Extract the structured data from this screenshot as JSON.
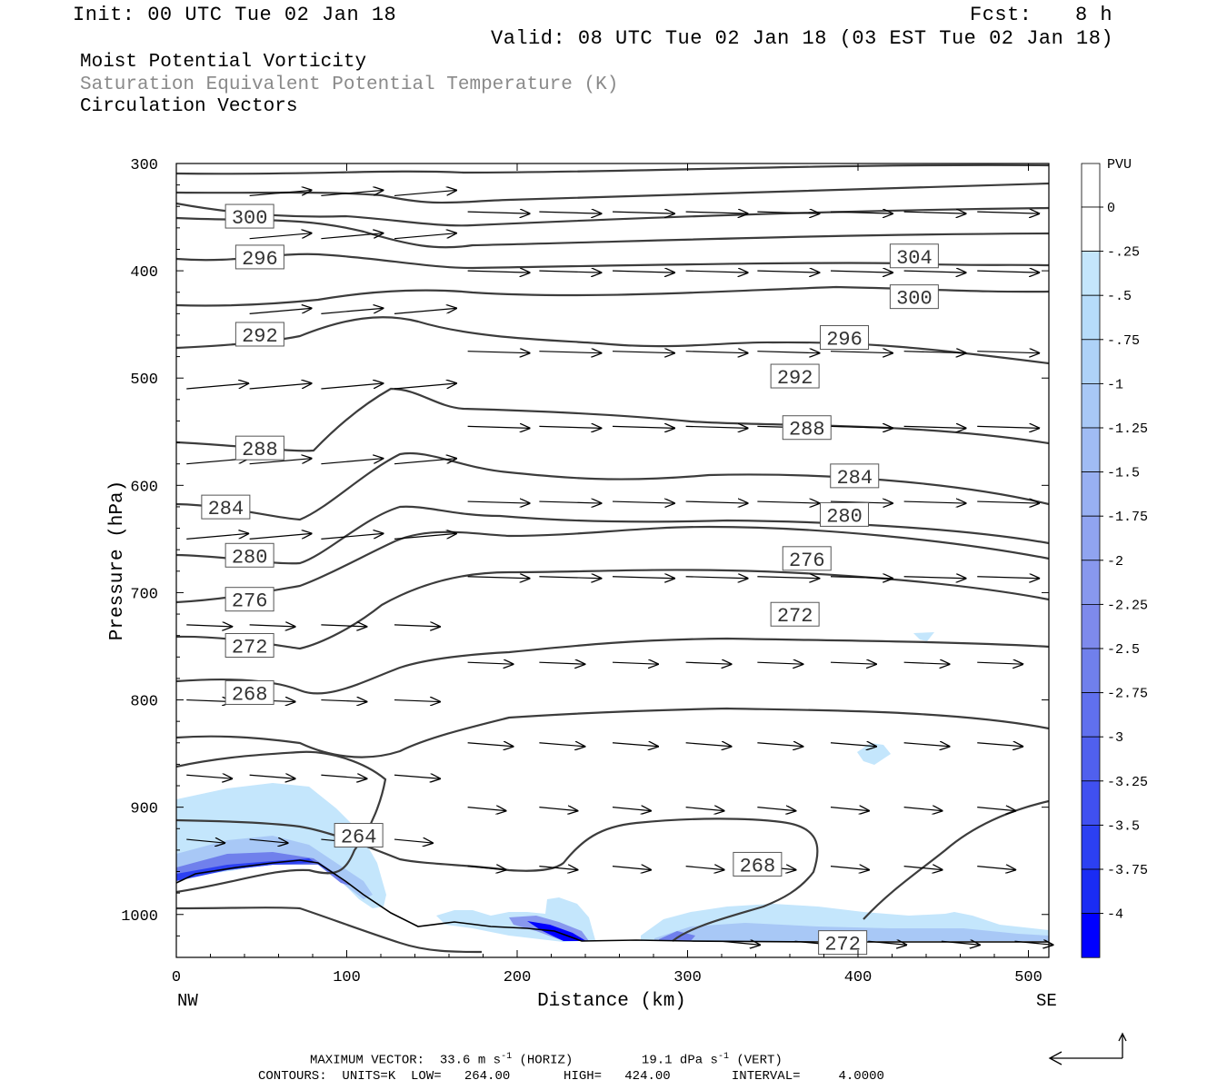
{
  "header": {
    "init": "Init: 00 UTC Tue 02 Jan 18",
    "fcst_label": "Fcst:",
    "fcst_value": "8 h",
    "valid": "Valid: 08 UTC Tue 02 Jan 18 (03 EST Tue 02 Jan 18)"
  },
  "fields": {
    "field1": "Moist Potential Vorticity",
    "field2": "Saturation Equivalent Potential Temperature (K)",
    "field3": "Circulation Vectors"
  },
  "footer": {
    "max_vector_label": "MAXIMUM VECTOR:",
    "max_horiz": "33.6 m s",
    "exp": "-1",
    "horiz_tag": "(HORIZ)",
    "max_vert": "19.1 dPa s",
    "vert_tag": "(VERT)",
    "contours": "CONTOURS:  UNITS=K  LOW=   264.00       HIGH=   424.00        INTERVAL=     4.0000"
  },
  "chart_data": {
    "type": "cross-section",
    "xlabel": "Distance (km)",
    "ylabel": "Pressure (hPa)",
    "xlim": [
      0,
      512
    ],
    "ylim": [
      1040,
      300
    ],
    "x_ticks": [
      0,
      100,
      200,
      300,
      400,
      500
    ],
    "y_ticks": [
      300,
      400,
      500,
      600,
      700,
      800,
      900,
      1000
    ],
    "x_end_labels": {
      "left": "NW",
      "right": "SE"
    },
    "colorbar": {
      "unit": "PVU",
      "labels": [
        "0",
        "-.25",
        "-.5",
        "-.75",
        "-1",
        "-1.25",
        "-1.5",
        "-1.75",
        "-2",
        "-2.25",
        "-2.5",
        "-2.75",
        "-3",
        "-3.25",
        "-3.5",
        "-3.75",
        "-4"
      ],
      "colors": [
        "#ffffff",
        "#ffffff",
        "#c4e6fc",
        "#b6dcfa",
        "#aed2f8",
        "#a8c8f6",
        "#a0bcf4",
        "#98b0f2",
        "#90a4f0",
        "#8898ee",
        "#7e8aec",
        "#7080ec",
        "#6070ee",
        "#5060ee",
        "#4050f0",
        "#2c40f2",
        "#1a2cf4",
        "#0000ff"
      ]
    },
    "contour_labels": [
      {
        "label": "300",
        "x": 43,
        "p": 350
      },
      {
        "label": "296",
        "x": 49,
        "p": 388
      },
      {
        "label": "292",
        "x": 49,
        "p": 460
      },
      {
        "label": "288",
        "x": 49,
        "p": 566
      },
      {
        "label": "284",
        "x": 29,
        "p": 621
      },
      {
        "label": "280",
        "x": 43,
        "p": 666
      },
      {
        "label": "276",
        "x": 43,
        "p": 707
      },
      {
        "label": "272",
        "x": 43,
        "p": 750
      },
      {
        "label": "268",
        "x": 43,
        "p": 794
      },
      {
        "label": "264",
        "x": 107,
        "p": 927
      },
      {
        "label": "304",
        "x": 433,
        "p": 387
      },
      {
        "label": "300",
        "x": 433,
        "p": 425
      },
      {
        "label": "296",
        "x": 392,
        "p": 463
      },
      {
        "label": "292",
        "x": 363,
        "p": 499
      },
      {
        "label": "288",
        "x": 370,
        "p": 547
      },
      {
        "label": "284",
        "x": 398,
        "p": 592
      },
      {
        "label": "280",
        "x": 392,
        "p": 628
      },
      {
        "label": "276",
        "x": 370,
        "p": 669
      },
      {
        "label": "272",
        "x": 363,
        "p": 721
      },
      {
        "label": "268",
        "x": 341,
        "p": 954
      },
      {
        "label": "272",
        "x": 391,
        "p": 1027
      }
    ]
  }
}
